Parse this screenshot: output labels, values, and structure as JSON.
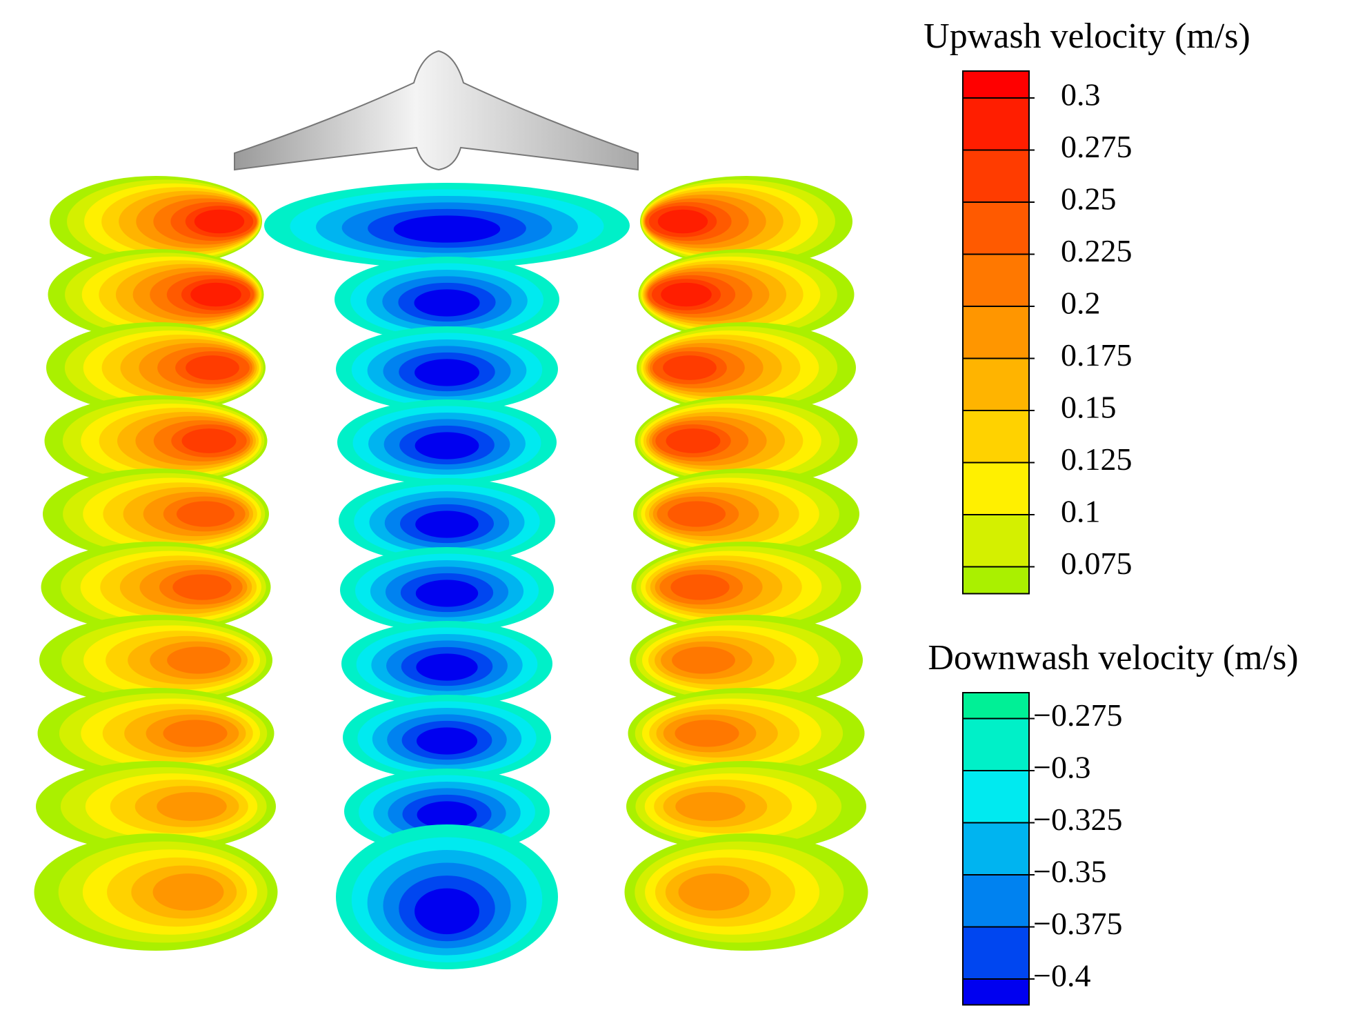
{
  "upwash": {
    "title": "Upwash velocity (m/s)",
    "ticks": [
      0.3,
      0.275,
      0.25,
      0.225,
      0.2,
      0.175,
      0.15,
      0.125,
      0.1,
      0.075
    ],
    "colors": [
      "#ff0000",
      "#ff1e00",
      "#ff3c00",
      "#ff5a00",
      "#ff7800",
      "#ff9600",
      "#ffb400",
      "#ffd200",
      "#fff000",
      "#d4f000",
      "#aaf000"
    ]
  },
  "downwash": {
    "title": "Downwash velocity (m/s)",
    "ticks": [
      {
        "value": -0.275,
        "label": "−0.275"
      },
      {
        "value": -0.3,
        "label": "−0.3"
      },
      {
        "value": -0.325,
        "label": "−0.325"
      },
      {
        "value": -0.35,
        "label": "−0.35"
      },
      {
        "value": -0.375,
        "label": "−0.375"
      },
      {
        "value": -0.4,
        "label": "−0.4"
      }
    ],
    "colors": [
      "#00f096",
      "#00f0c8",
      "#00eaf0",
      "#00b4f0",
      "#0082f0",
      "#0046f0",
      "#0000f0"
    ]
  }
}
